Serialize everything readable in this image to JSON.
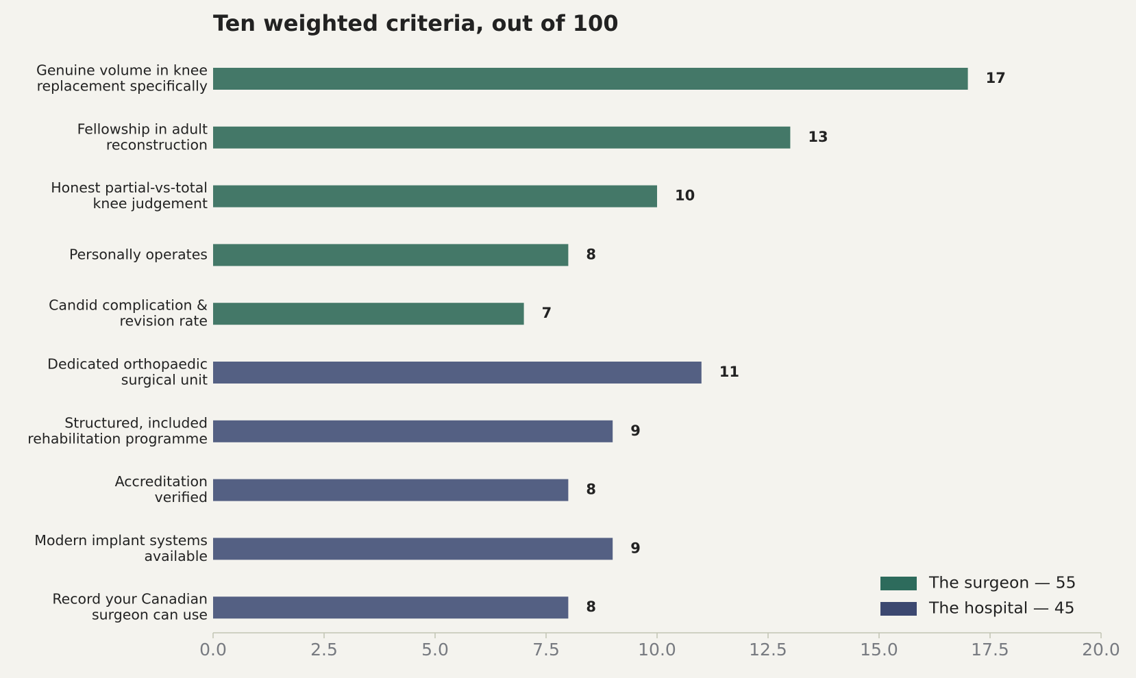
{
  "chart_data": {
    "type": "bar",
    "orientation": "horizontal",
    "title": "Ten weighted criteria, out of 100",
    "xlabel": "",
    "ylabel": "",
    "xlim": [
      0,
      20
    ],
    "x_ticks": [
      "0.0",
      "2.5",
      "5.0",
      "7.5",
      "10.0",
      "12.5",
      "15.0",
      "17.5",
      "20.0"
    ],
    "x_tick_values": [
      0,
      2.5,
      5,
      7.5,
      10,
      12.5,
      15,
      17.5,
      20
    ],
    "grid": false,
    "legend_position": "bottom-right",
    "groups": [
      {
        "name": "The surgeon — 55",
        "color": "#2d6b5c",
        "bar_color": "#447868"
      },
      {
        "name": "The hospital — 45",
        "color": "#3c4870",
        "bar_color": "#546083"
      }
    ],
    "bars": [
      {
        "label": [
          "Genuine volume in knee",
          "replacement specifically"
        ],
        "value": 17,
        "group": 0
      },
      {
        "label": [
          "Fellowship in adult",
          "reconstruction"
        ],
        "value": 13,
        "group": 0
      },
      {
        "label": [
          "Honest partial-vs-total",
          "knee judgement"
        ],
        "value": 10,
        "group": 0
      },
      {
        "label": [
          "Personally operates"
        ],
        "value": 8,
        "group": 0
      },
      {
        "label": [
          "Candid complication &",
          "revision rate"
        ],
        "value": 7,
        "group": 0
      },
      {
        "label": [
          "Dedicated orthopaedic",
          "surgical unit"
        ],
        "value": 11,
        "group": 1
      },
      {
        "label": [
          "Structured, included",
          "rehabilitation programme"
        ],
        "value": 9,
        "group": 1
      },
      {
        "label": [
          "Accreditation",
          "verified"
        ],
        "value": 8,
        "group": 1
      },
      {
        "label": [
          "Modern implant systems",
          "available"
        ],
        "value": 9,
        "group": 1
      },
      {
        "label": [
          "Record your Canadian",
          "surgeon can use"
        ],
        "value": 8,
        "group": 1
      }
    ]
  }
}
